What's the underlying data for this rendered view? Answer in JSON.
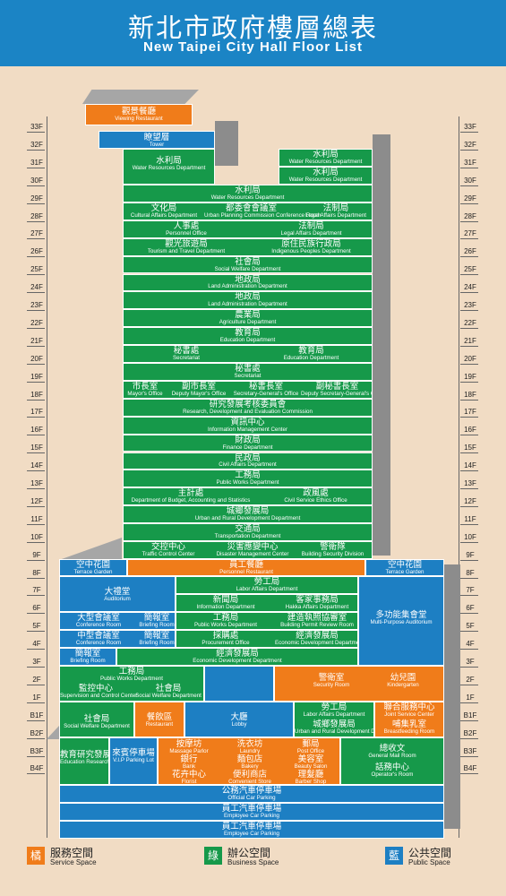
{
  "header": {
    "title_zh": "新北市政府樓層總表",
    "title_en": "New Taipei City Hall Floor List"
  },
  "floors": [
    "33F",
    "32F",
    "31F",
    "30F",
    "29F",
    "28F",
    "27F",
    "26F",
    "25F",
    "24F",
    "23F",
    "22F",
    "21F",
    "20F",
    "19F",
    "18F",
    "17F",
    "16F",
    "15F",
    "14F",
    "13F",
    "12F",
    "11F",
    "10F",
    "9F",
    "8F",
    "7F",
    "6F",
    "5F",
    "4F",
    "3F",
    "2F",
    "1F",
    "B1F",
    "B2F",
    "B3F",
    "B4F"
  ],
  "colors": {
    "business": "#16994a",
    "public": "#1d7fc3",
    "service": "#f07c1a",
    "background": "#f1dcc4"
  },
  "rooms": {
    "viewing_restaurant": {
      "zh": "觀景餐廳",
      "en": "Viewing Restaurant"
    },
    "tower": {
      "zh": "瞭望層",
      "en": "Tower"
    },
    "f31_water_right": {
      "zh": "水利局",
      "en": "Water Resources Department"
    },
    "f30_water_right": {
      "zh": "水利局",
      "en": "Water Resources Department"
    },
    "f30_water_left": {
      "zh": "水利局",
      "en": "Water Resources Department"
    },
    "f29_water": {
      "zh": "水利局",
      "en": "Water Resources Department"
    },
    "f28_cultural": {
      "zh": "文化局",
      "en": "Cultural Affairs Department"
    },
    "f28_urban_commission": {
      "zh": "都委會會議室",
      "en": "Urban Planning Commission Conference Room"
    },
    "f28_legal": {
      "zh": "法制局",
      "en": "Legal Affairs Department"
    },
    "f27_personnel": {
      "zh": "人事處",
      "en": "Personnel Office"
    },
    "f27_legal": {
      "zh": "法制局",
      "en": "Legal Affairs Department"
    },
    "f26_tourism": {
      "zh": "觀光旅遊局",
      "en": "Tourism and Travel Department"
    },
    "f26_indigenous": {
      "zh": "原住民族行政局",
      "en": "Indigenous Peoples Department"
    },
    "f25_social": {
      "zh": "社會局",
      "en": "Social Welfare Department"
    },
    "f24_land": {
      "zh": "地政局",
      "en": "Land Administration Department"
    },
    "f23_land": {
      "zh": "地政局",
      "en": "Land Administration Department"
    },
    "f22_agri": {
      "zh": "農業局",
      "en": "Agriculture Department"
    },
    "f21_edu": {
      "zh": "教育局",
      "en": "Education Department"
    },
    "f20_secretariat": {
      "zh": "秘書處",
      "en": "Secretariat"
    },
    "f20_edu": {
      "zh": "教育局",
      "en": "Education Department"
    },
    "f19_secretariat": {
      "zh": "秘書處",
      "en": "Secretariat"
    },
    "f18_mayor": {
      "zh": "市長室",
      "en": "Mayor's Office"
    },
    "f18_deputy_mayor": {
      "zh": "副市長室",
      "en": "Deputy Mayor's Office"
    },
    "f18_secgen": {
      "zh": "秘書長室",
      "en": "Secretary-General's Office"
    },
    "f18_deputy_secgen": {
      "zh": "副秘書長室",
      "en": "Deputy Secretary-General's Office"
    },
    "f17_rdec": {
      "zh": "研究發展考核委員會",
      "en": "Research, Development and Evaluation Commission"
    },
    "f16_info": {
      "zh": "資訊中心",
      "en": "Information Management Center"
    },
    "f15_finance": {
      "zh": "財政局",
      "en": "Finance Department"
    },
    "f14_civil": {
      "zh": "民政局",
      "en": "Civil Affairs Department"
    },
    "f13_works": {
      "zh": "工務局",
      "en": "Public Works Department"
    },
    "f12_budget": {
      "zh": "主計處",
      "en": "Department of Budget, Accounting and Statistics"
    },
    "f12_ethics": {
      "zh": "政風處",
      "en": "Civil Service Ethics Office"
    },
    "f11_urban": {
      "zh": "城鄉發展局",
      "en": "Urban and Rural Development Department"
    },
    "f10_transport": {
      "zh": "交通局",
      "en": "Transportation Department"
    },
    "f9_traffic": {
      "zh": "交控中心",
      "en": "Traffic Control Center"
    },
    "f9_disaster": {
      "zh": "災害應變中心",
      "en": "Disaster Management Center"
    },
    "f9_security": {
      "zh": "警衛隊",
      "en": "Building Security Division"
    },
    "f8_garden_left": {
      "zh": "空中花園",
      "en": "Terrace Garden"
    },
    "f8_restaurant": {
      "zh": "員工餐廳",
      "en": "Personnel Restaurant"
    },
    "f8_garden_right": {
      "zh": "空中花園",
      "en": "Terrace Garden"
    },
    "f7_auditorium": {
      "zh": "大禮堂",
      "en": "Auditorium"
    },
    "f7_labor": {
      "zh": "勞工局",
      "en": "Labor Affairs Department"
    },
    "f6_news": {
      "zh": "新聞局",
      "en": "Information Department"
    },
    "f6_hakka": {
      "zh": "客家事務局",
      "en": "Hakka Affairs Department"
    },
    "f5_conference": {
      "zh": "大型會議室",
      "en": "Conference Room"
    },
    "f5_briefing": {
      "zh": "簡報室",
      "en": "Briefing Room"
    },
    "f5_works": {
      "zh": "工務局",
      "en": "Public Works Department"
    },
    "f5_permit": {
      "zh": "建造執照協審室",
      "en": "Building Permit Review Room"
    },
    "f4_conference": {
      "zh": "中型會議室",
      "en": "Conference Room"
    },
    "f4_briefing": {
      "zh": "簡報室",
      "en": "Briefing Room"
    },
    "f4_procurement": {
      "zh": "採購處",
      "en": "Procurement Office"
    },
    "f4_economic": {
      "zh": "經濟發展局",
      "en": "Economic Development Department"
    },
    "multipurpose": {
      "zh": "多功能集會堂",
      "en": "Multi-Purpose Auditorium"
    },
    "f3_briefing": {
      "zh": "簡報室",
      "en": "Briefing Room"
    },
    "f3_economic": {
      "zh": "經濟發展局",
      "en": "Economic Development Department"
    },
    "f2_works": {
      "zh": "工務局",
      "en": "Public Works Department"
    },
    "f2_monitor": {
      "zh": "監控中心",
      "en": "Supervision and Control Center"
    },
    "f2_social": {
      "zh": "社會局",
      "en": "Social Welfare Department"
    },
    "f2_security_room": {
      "zh": "警衛室",
      "en": "Security Room"
    },
    "f2_kindergarten": {
      "zh": "幼兒園",
      "en": "Kindergarten"
    },
    "f1_social": {
      "zh": "社會局",
      "en": "Social Welfare Department"
    },
    "f1_restaurant": {
      "zh": "餐飲區",
      "en": "Restaurant"
    },
    "f1_lobby": {
      "zh": "大廳",
      "en": "Lobby"
    },
    "f1_labor": {
      "zh": "勞工局",
      "en": "Labor Affairs Department"
    },
    "f1_urban": {
      "zh": "城鄉發展局",
      "en": "Urban and Rural Development Department"
    },
    "f1_joint_service": {
      "zh": "聯合服務中心",
      "en": "Joint Service Center"
    },
    "f1_breastfeeding": {
      "zh": "哺集乳室",
      "en": "Breastfeeding Room"
    },
    "b1_edu_research": {
      "zh": "教育研究發展科",
      "en": "Education Research and Development Division"
    },
    "b1_vip_parking": {
      "zh": "來賓停車場",
      "en": "V.I.P Parking Lot"
    },
    "b1_massage": {
      "zh": "按摩坊",
      "en": "Massage Parlor"
    },
    "b1_bank": {
      "zh": "銀行",
      "en": "Bank"
    },
    "b1_florist": {
      "zh": "花卉中心",
      "en": "Florist"
    },
    "b1_laundry": {
      "zh": "洗衣坊",
      "en": "Laundry"
    },
    "b1_bakery": {
      "zh": "麵包店",
      "en": "Bakery"
    },
    "b1_convenient": {
      "zh": "便利商店",
      "en": "Convenient Store"
    },
    "b1_post": {
      "zh": "郵局",
      "en": "Post Office"
    },
    "b1_beauty": {
      "zh": "美容室",
      "en": "Beauty Salon"
    },
    "b1_barber": {
      "zh": "理髮廳",
      "en": "Barber Shop"
    },
    "b1_mail": {
      "zh": "總收文",
      "en": "General Mail Room"
    },
    "b1_operator": {
      "zh": "話務中心",
      "en": "Operator's Room"
    },
    "b2_official_parking": {
      "zh": "公務汽車停車場",
      "en": "Official Car Parking"
    },
    "b3_employee_parking": {
      "zh": "員工汽車停車場",
      "en": "Employee Car Parking"
    },
    "b4_employee_parking": {
      "zh": "員工汽車停車場",
      "en": "Employee Car Parking"
    }
  },
  "legend": [
    {
      "swatch": "橘",
      "zh": "服務空間",
      "en": "Service Space"
    },
    {
      "swatch": "綠",
      "zh": "辦公空間",
      "en": "Business Space"
    },
    {
      "swatch": "藍",
      "zh": "公共空間",
      "en": "Public Space"
    }
  ]
}
